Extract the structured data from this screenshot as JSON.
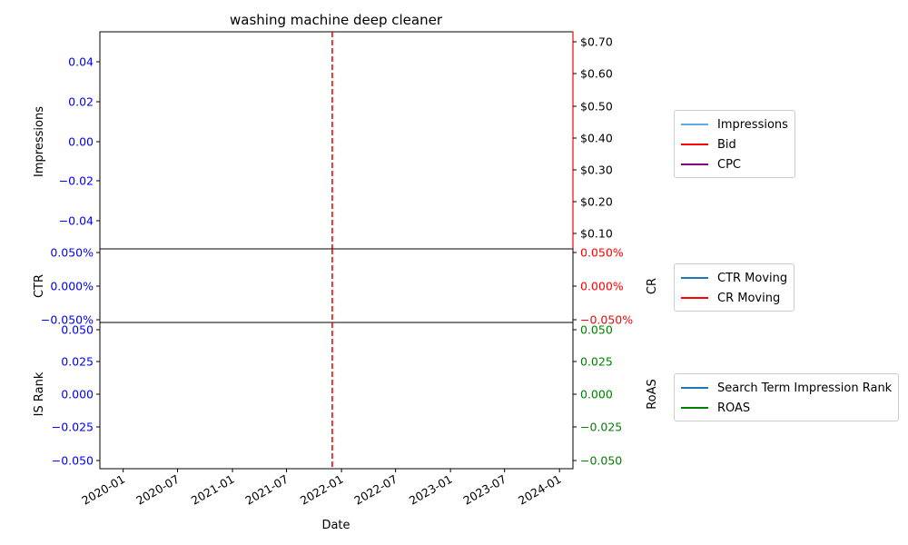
{
  "chart_data": {
    "type": "line",
    "title": "washing machine deep cleaner",
    "xlabel": "Date",
    "x_range": [
      "2019-10-15",
      "2024-02-15"
    ],
    "x_ticks": [
      "2020-01",
      "2020-07",
      "2021-01",
      "2021-07",
      "2022-01",
      "2022-07",
      "2023-01",
      "2023-07",
      "2024-01"
    ],
    "marker_date": "2021-12-01",
    "marker_color": "#ff0000",
    "panels": [
      {
        "id": "top",
        "left_label": "Impressions",
        "left_color": "#0000ff",
        "left_ticks": [
          "0.04",
          "0.02",
          "0.00",
          "−0.02",
          "−0.04"
        ],
        "left_ylim": [
          -0.055,
          0.055
        ],
        "right_label": "",
        "right_color": "#000000",
        "right_spine_color": "#ff0000",
        "right_ticks": [
          "$0.70",
          "$0.60",
          "$0.50",
          "$0.40",
          "$0.30",
          "$0.20",
          "$0.10"
        ],
        "right_ylim": [
          0.05,
          0.735
        ],
        "series": [
          {
            "name": "Impressions",
            "color": "#5dade2",
            "values": []
          },
          {
            "name": "Bid",
            "color": "#ff0000",
            "values": []
          },
          {
            "name": "CPC",
            "color": "#800080",
            "values": []
          }
        ]
      },
      {
        "id": "middle",
        "left_label": "CTR",
        "left_color": "#0000ff",
        "left_ticks": [
          "0.050%",
          "0.000%",
          "−0.050%"
        ],
        "left_ylim": [
          -0.055,
          0.055
        ],
        "right_label": "CR",
        "right_color": "#ff0000",
        "right_ticks": [
          "0.050%",
          "0.000%",
          "−0.050%"
        ],
        "right_ylim": [
          -0.055,
          0.055
        ],
        "series": [
          {
            "name": "CTR Moving",
            "color": "#1f77b4",
            "values": []
          },
          {
            "name": "CR Moving",
            "color": "#ff0000",
            "values": []
          }
        ]
      },
      {
        "id": "bottom",
        "left_label": "IS Rank",
        "left_color": "#0000ff",
        "left_ticks": [
          "0.050",
          "0.025",
          "0.000",
          "−0.025",
          "−0.050"
        ],
        "left_ylim": [
          -0.055,
          0.055
        ],
        "right_label": "RoAS",
        "right_color": "#008000",
        "right_ticks": [
          "0.050",
          "0.025",
          "0.000",
          "−0.025",
          "−0.050"
        ],
        "right_ylim": [
          -0.055,
          0.055
        ],
        "series": [
          {
            "name": "Search Term Impression Rank",
            "color": "#1f77b4",
            "values": []
          },
          {
            "name": "ROAS",
            "color": "#008000",
            "values": []
          }
        ]
      }
    ]
  }
}
